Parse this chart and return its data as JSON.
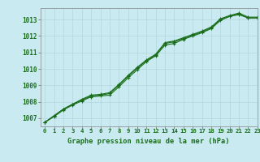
{
  "title": "Graphe pression niveau de la mer (hPa)",
  "bg_color": "#c8eaf0",
  "grid_color": "#b0d8dc",
  "line_color": "#1a6e1a",
  "xlim": [
    -0.5,
    23
  ],
  "ylim": [
    1006.5,
    1013.7
  ],
  "yticks": [
    1007,
    1008,
    1009,
    1010,
    1011,
    1012,
    1013
  ],
  "xticks": [
    0,
    1,
    2,
    3,
    4,
    5,
    6,
    7,
    8,
    9,
    10,
    11,
    12,
    13,
    14,
    15,
    16,
    17,
    18,
    19,
    20,
    21,
    22,
    23
  ],
  "series1_x": [
    0,
    1,
    2,
    3,
    4,
    5,
    6,
    7,
    8,
    9,
    10,
    11,
    12,
    13,
    14,
    15,
    16,
    17,
    18,
    19,
    20,
    21,
    22,
    23
  ],
  "series1": [
    1006.75,
    1007.1,
    1007.5,
    1007.8,
    1008.05,
    1008.3,
    1008.35,
    1008.4,
    1008.9,
    1009.45,
    1009.95,
    1010.45,
    1010.8,
    1011.45,
    1011.55,
    1011.8,
    1012.0,
    1012.2,
    1012.45,
    1012.95,
    1013.2,
    1013.3,
    1013.1,
    1013.1
  ],
  "series2": [
    1006.75,
    1007.15,
    1007.55,
    1007.85,
    1008.1,
    1008.35,
    1008.4,
    1008.5,
    1009.0,
    1009.55,
    1010.05,
    1010.5,
    1010.85,
    1011.55,
    1011.65,
    1011.85,
    1012.05,
    1012.25,
    1012.5,
    1013.0,
    1013.2,
    1013.35,
    1013.1,
    1013.1
  ],
  "series3": [
    1006.75,
    1007.15,
    1007.55,
    1007.85,
    1008.15,
    1008.4,
    1008.45,
    1008.55,
    1009.05,
    1009.6,
    1010.1,
    1010.55,
    1010.9,
    1011.6,
    1011.7,
    1011.9,
    1012.1,
    1012.3,
    1012.55,
    1013.05,
    1013.25,
    1013.4,
    1013.15,
    1013.15
  ]
}
